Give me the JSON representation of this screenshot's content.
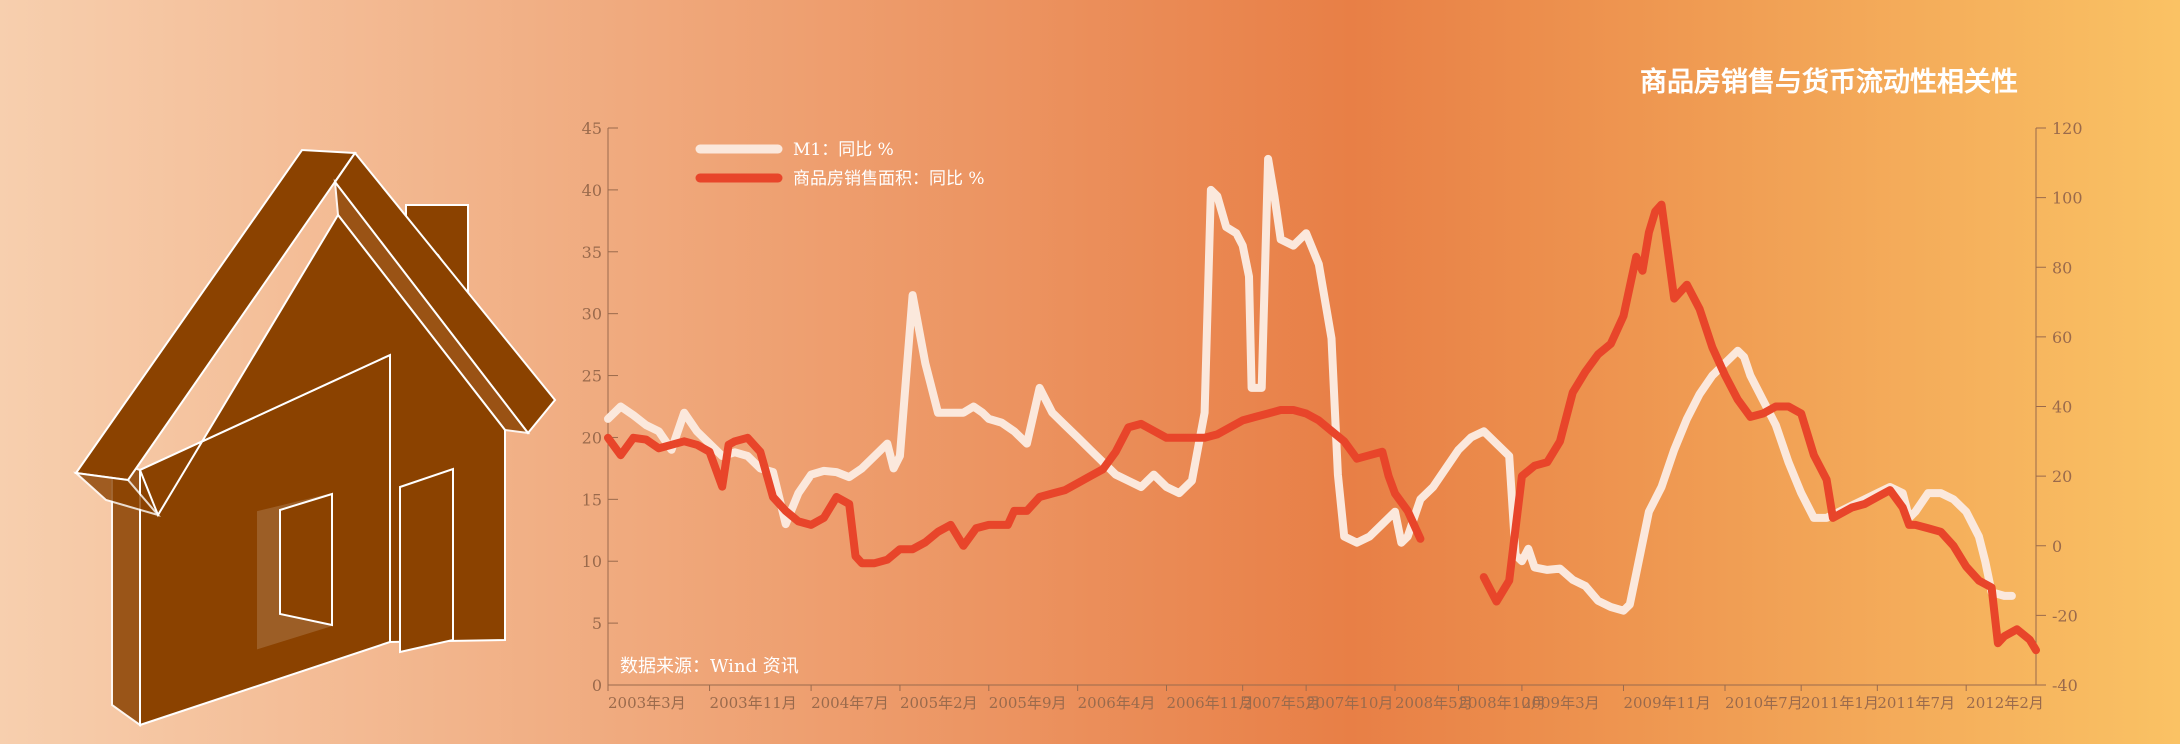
{
  "colors": {
    "bg_left": "#f7cfae",
    "bg_mid": "#e87f46",
    "bg_right": "#fac264",
    "m1": "#fbe8dc",
    "sales": "#e8452a",
    "house": "#8b4200",
    "axis": "#9a6a4c"
  },
  "source_label": "数据来源：Wind 资讯",
  "chart_data": {
    "type": "line",
    "title": "商品房销售与货币流动性相关性",
    "xlabel": "",
    "ylabel": "",
    "y_left": {
      "min": 0,
      "max": 45,
      "ticks": [
        "0",
        "5",
        "10",
        "15",
        "20",
        "25",
        "30",
        "35",
        "40",
        "45"
      ]
    },
    "y_right": {
      "min": -40,
      "max": 120,
      "ticks": [
        "-40",
        "-20",
        "0",
        "20",
        "40",
        "60",
        "80",
        "100",
        "120"
      ]
    },
    "x_tick_labels": [
      "2003年3月",
      "2003年11月",
      "2004年7月",
      "2005年2月",
      "2005年9月",
      "2006年4月",
      "2006年11月",
      "2007年5月",
      "2007年10月",
      "2008年5月",
      "2008年10月",
      "2009年3月",
      "2009年11月",
      "2010年7月",
      "2011年1月",
      "2011年7月",
      "2012年2月"
    ],
    "x_tick_positions": [
      0,
      8,
      16,
      23,
      30,
      37,
      44,
      50,
      55,
      62,
      67,
      72,
      80,
      88,
      94,
      100,
      107
    ],
    "legend_position": "top-left",
    "grid": false,
    "series": [
      {
        "name": "M1：同比 %",
        "axis": "left",
        "color": "#fbe8dc",
        "points": [
          [
            0,
            21.5
          ],
          [
            1,
            22.5
          ],
          [
            2,
            21.8
          ],
          [
            3,
            21
          ],
          [
            4,
            20.5
          ],
          [
            5,
            19
          ],
          [
            6,
            22
          ],
          [
            7,
            20.5
          ],
          [
            8,
            19.5
          ],
          [
            9,
            18.5
          ],
          [
            10,
            18.8
          ],
          [
            11,
            18.5
          ],
          [
            12,
            17.5
          ],
          [
            13,
            17.2
          ],
          [
            14,
            13
          ],
          [
            15,
            15.5
          ],
          [
            16,
            17
          ],
          [
            17,
            17.3
          ],
          [
            18,
            17.2
          ],
          [
            19,
            16.8
          ],
          [
            20,
            17.5
          ],
          [
            21,
            18.5
          ],
          [
            22,
            19.5
          ],
          [
            22.5,
            17.5
          ],
          [
            23,
            18.5
          ],
          [
            24,
            31.5
          ],
          [
            25,
            26
          ],
          [
            26,
            22
          ],
          [
            27,
            22
          ],
          [
            28,
            22
          ],
          [
            28.8,
            22.5
          ],
          [
            29.5,
            22
          ],
          [
            30,
            21.5
          ],
          [
            31,
            21.2
          ],
          [
            32,
            20.5
          ],
          [
            33,
            19.5
          ],
          [
            34,
            24
          ],
          [
            35,
            22
          ],
          [
            36,
            21
          ],
          [
            37,
            20
          ],
          [
            38,
            19
          ],
          [
            39,
            18
          ],
          [
            40,
            17
          ],
          [
            41,
            16.5
          ],
          [
            42,
            16
          ],
          [
            43,
            17
          ],
          [
            44,
            16
          ],
          [
            45,
            15.5
          ],
          [
            46,
            16.5
          ],
          [
            47,
            22
          ],
          [
            47.5,
            40
          ],
          [
            48,
            39.5
          ],
          [
            48.7,
            37
          ],
          [
            49.5,
            36.5
          ],
          [
            50,
            35.5
          ],
          [
            50.5,
            33
          ],
          [
            50.7,
            24
          ],
          [
            51,
            24
          ],
          [
            51.5,
            24
          ],
          [
            52,
            42.5
          ],
          [
            52.5,
            39.5
          ],
          [
            53,
            36
          ],
          [
            54,
            35.5
          ],
          [
            55,
            36.5
          ],
          [
            56,
            34
          ],
          [
            57,
            28
          ],
          [
            57.5,
            17
          ],
          [
            58,
            12
          ],
          [
            59,
            11.5
          ],
          [
            60,
            12
          ],
          [
            61,
            13
          ],
          [
            62,
            14
          ],
          [
            62.5,
            11.5
          ],
          [
            63,
            12
          ],
          [
            64,
            15
          ],
          [
            65,
            16
          ],
          [
            66,
            17.5
          ],
          [
            67,
            19
          ],
          [
            68,
            20
          ],
          [
            69,
            20.5
          ],
          [
            70,
            19.5
          ],
          [
            71,
            18.5
          ],
          [
            71.5,
            10.5
          ],
          [
            72,
            10
          ],
          [
            72.5,
            11
          ],
          [
            73,
            9.5
          ],
          [
            74,
            9.3
          ],
          [
            75,
            9.4
          ],
          [
            76,
            8.5
          ],
          [
            77,
            8
          ],
          [
            78,
            6.8
          ],
          [
            79,
            6.3
          ],
          [
            80,
            6
          ],
          [
            80.5,
            6.5
          ],
          [
            81,
            9
          ],
          [
            82,
            14
          ],
          [
            83,
            16
          ],
          [
            84,
            19
          ],
          [
            85,
            21.5
          ],
          [
            86,
            23.5
          ],
          [
            87,
            25
          ],
          [
            88,
            26
          ],
          [
            89,
            27
          ],
          [
            89.5,
            26.5
          ],
          [
            90,
            25
          ],
          [
            91,
            23
          ],
          [
            92,
            21
          ],
          [
            93,
            18
          ],
          [
            94,
            15.5
          ],
          [
            95,
            13.5
          ],
          [
            96,
            13.5
          ],
          [
            97,
            14
          ],
          [
            98,
            14.5
          ],
          [
            99,
            15
          ],
          [
            100,
            15.5
          ],
          [
            101,
            16
          ],
          [
            102,
            15.5
          ],
          [
            102.5,
            13.5
          ],
          [
            103,
            14
          ],
          [
            104,
            15.5
          ],
          [
            105,
            15.5
          ],
          [
            106,
            15
          ],
          [
            107,
            14
          ],
          [
            108,
            12
          ],
          [
            108.5,
            10
          ],
          [
            109,
            7.5
          ],
          [
            110,
            7.2
          ],
          [
            110.6,
            7.2
          ]
        ]
      },
      {
        "name": "商品房销售面积：同比 %",
        "axis": "right",
        "color": "#e8452a",
        "points": [
          [
            0,
            31
          ],
          [
            1,
            26
          ],
          [
            2,
            31
          ],
          [
            3,
            30.5
          ],
          [
            4,
            28
          ],
          [
            5,
            29
          ],
          [
            6,
            30
          ],
          [
            7,
            29
          ],
          [
            8,
            27
          ],
          [
            9,
            17
          ],
          [
            9.5,
            29
          ],
          [
            10,
            30
          ],
          [
            11,
            31
          ],
          [
            12,
            27
          ],
          [
            13,
            14
          ],
          [
            14,
            10
          ],
          [
            15,
            7
          ],
          [
            16,
            6
          ],
          [
            17,
            8
          ],
          [
            18,
            14
          ],
          [
            19,
            12
          ],
          [
            19.5,
            -3
          ],
          [
            20,
            -5
          ],
          [
            21,
            -5
          ],
          [
            22,
            -4
          ],
          [
            23,
            -1
          ],
          [
            24,
            -1
          ],
          [
            25,
            1
          ],
          [
            26,
            4
          ],
          [
            27,
            6
          ],
          [
            28,
            0
          ],
          [
            29,
            5
          ],
          [
            30,
            6
          ],
          [
            31,
            6
          ],
          [
            31.5,
            6
          ],
          [
            32,
            10
          ],
          [
            33,
            10
          ],
          [
            34,
            14
          ],
          [
            35,
            15
          ],
          [
            36,
            16
          ],
          [
            37,
            18
          ],
          [
            38,
            20
          ],
          [
            39,
            22
          ],
          [
            40,
            27
          ],
          [
            41,
            34
          ],
          [
            42,
            35
          ],
          [
            43,
            33
          ],
          [
            44,
            31
          ],
          [
            45,
            31
          ],
          [
            46,
            31
          ],
          [
            47,
            31
          ],
          [
            48,
            32
          ],
          [
            49,
            34
          ],
          [
            50,
            36
          ],
          [
            51,
            37
          ],
          [
            52,
            38
          ],
          [
            53,
            39
          ],
          [
            54,
            39
          ],
          [
            55,
            38
          ],
          [
            56,
            36
          ],
          [
            57,
            33
          ],
          [
            58,
            30
          ],
          [
            59,
            25
          ],
          [
            60,
            26
          ],
          [
            61,
            27
          ],
          [
            61.5,
            20
          ],
          [
            62,
            15
          ],
          [
            63,
            10
          ],
          [
            64,
            2
          ],
          [
            69,
            -9
          ],
          [
            70,
            -16
          ],
          [
            71,
            -10
          ],
          [
            72,
            20
          ],
          [
            73,
            23
          ],
          [
            74,
            24
          ],
          [
            75,
            30
          ],
          [
            76,
            44
          ],
          [
            77,
            50
          ],
          [
            78,
            55
          ],
          [
            79,
            58
          ],
          [
            80,
            66
          ],
          [
            81,
            83
          ],
          [
            81.5,
            79
          ],
          [
            82,
            90
          ],
          [
            82.5,
            96
          ],
          [
            83,
            98
          ],
          [
            84,
            71
          ],
          [
            85,
            75
          ],
          [
            86,
            68
          ],
          [
            87,
            57
          ],
          [
            88,
            49
          ],
          [
            89,
            42
          ],
          [
            90,
            37
          ],
          [
            91,
            38
          ],
          [
            92,
            40
          ],
          [
            93,
            40
          ],
          [
            94,
            38
          ],
          [
            95,
            26
          ],
          [
            96,
            19
          ],
          [
            96.5,
            8
          ],
          [
            97,
            9
          ],
          [
            98,
            11
          ],
          [
            99,
            12
          ],
          [
            100,
            14
          ],
          [
            101,
            16
          ],
          [
            102,
            11
          ],
          [
            102.5,
            6
          ],
          [
            103,
            6
          ],
          [
            104,
            5
          ],
          [
            105,
            4
          ],
          [
            106,
            0
          ],
          [
            107,
            -6
          ],
          [
            108,
            -10
          ],
          [
            109,
            -12
          ],
          [
            109.5,
            -28
          ],
          [
            110,
            -26
          ],
          [
            111,
            -24
          ],
          [
            112,
            -27
          ],
          [
            112.5,
            -30
          ]
        ]
      }
    ]
  }
}
